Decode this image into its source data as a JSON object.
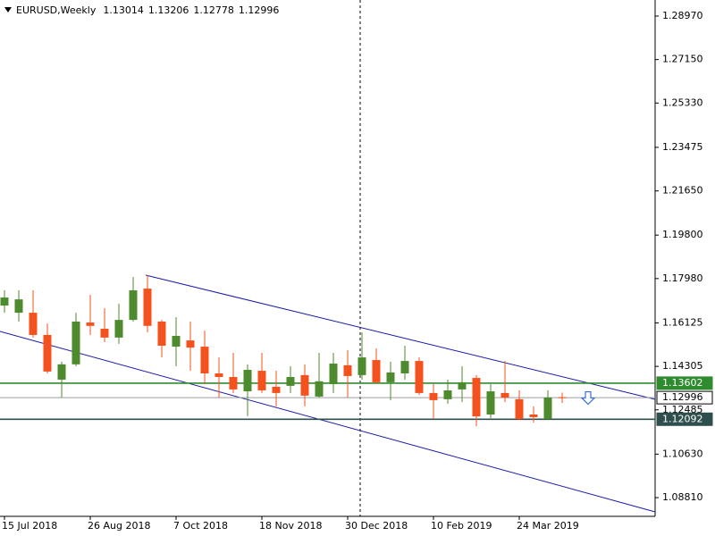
{
  "chart_data": {
    "type": "candlestick",
    "title": "EURUSD,Weekly",
    "header_ohlc": [
      1.13014,
      1.13206,
      1.12778,
      1.12996
    ],
    "categories": [
      "15 Jul 2018",
      null,
      null,
      null,
      null,
      null,
      "26 Aug 2018",
      null,
      null,
      null,
      null,
      null,
      "7 Oct 2018",
      null,
      null,
      null,
      null,
      null,
      "18 Nov 2018",
      null,
      null,
      null,
      null,
      null,
      "30 Dec 2018",
      null,
      null,
      null,
      null,
      null,
      "10 Feb 2019",
      null,
      null,
      null,
      null,
      null,
      "24 Mar 2019",
      null,
      null,
      null
    ],
    "open": [
      1.1685,
      1.1655,
      1.1655,
      1.1562,
      1.1375,
      1.1439,
      1.1614,
      1.1588,
      1.1551,
      1.1625,
      1.1756,
      1.1618,
      1.1513,
      1.1539,
      1.1513,
      1.1401,
      1.1386,
      1.1326,
      1.1412,
      1.1345,
      1.1349,
      1.1394,
      1.1304,
      1.1356,
      1.1435,
      1.1394,
      1.1457,
      1.1364,
      1.1401,
      1.1453,
      1.1319,
      1.1293,
      1.1334,
      1.1382,
      1.1229,
      1.1319,
      1.1293,
      1.1229,
      1.121,
      1.13014
    ],
    "high": [
      1.1749,
      1.1749,
      1.1749,
      1.161,
      1.145,
      1.1655,
      1.173,
      1.1674,
      1.1693,
      1.1805,
      1.1812,
      1.1625,
      1.1636,
      1.1618,
      1.158,
      1.1468,
      1.1487,
      1.1439,
      1.1487,
      1.1412,
      1.1431,
      1.1439,
      1.1487,
      1.1487,
      1.1498,
      1.1573,
      1.1506,
      1.145,
      1.1517,
      1.1468,
      1.1356,
      1.1375,
      1.1431,
      1.1394,
      1.1356,
      1.1453,
      1.133,
      1.1263,
      1.133,
      1.13206
    ],
    "low": [
      1.1655,
      1.1618,
      1.1551,
      1.1401,
      1.13,
      1.1431,
      1.1562,
      1.1532,
      1.1525,
      1.1618,
      1.1573,
      1.1468,
      1.1431,
      1.1412,
      1.1356,
      1.13,
      1.1319,
      1.1222,
      1.1319,
      1.1263,
      1.1319,
      1.1263,
      1.13,
      1.1319,
      1.13,
      1.1375,
      1.1356,
      1.1289,
      1.1375,
      1.1311,
      1.121,
      1.1274,
      1.1281,
      1.118,
      1.1214,
      1.1281,
      1.1206,
      1.1195,
      1.1206,
      1.12778
    ],
    "close": [
      1.1719,
      1.1711,
      1.1562,
      1.1409,
      1.1439,
      1.1618,
      1.16,
      1.1551,
      1.1625,
      1.1749,
      1.16,
      1.1517,
      1.1558,
      1.1509,
      1.1401,
      1.1386,
      1.1334,
      1.1416,
      1.133,
      1.1319,
      1.1386,
      1.1308,
      1.1368,
      1.1442,
      1.139,
      1.1468,
      1.1364,
      1.1405,
      1.1453,
      1.1319,
      1.1289,
      1.133,
      1.1364,
      1.1221,
      1.1326,
      1.13,
      1.121,
      1.1218,
      1.13,
      1.12996
    ],
    "up_color": "#4e8a2e",
    "down_color": "#f4511e",
    "xlim": [
      -0.3125,
      45.5
    ],
    "ylim": [
      1.08026,
      1.29643
    ],
    "yticks": [
      {
        "value": 1.2897,
        "label": "1.28970"
      },
      {
        "value": 1.2715,
        "label": "1.27150"
      },
      {
        "value": 1.2533,
        "label": "1.25330"
      },
      1.23475,
      {
        "value": 1.2165,
        "label": "1.21650"
      },
      {
        "value": 1.198,
        "label": "1.19800"
      },
      {
        "value": 1.1798,
        "label": "1.17980"
      },
      1.16125,
      1.14305,
      1.12485,
      {
        "value": 1.1063,
        "label": "1.10630"
      },
      {
        "value": 1.0881,
        "label": "1.08810"
      }
    ],
    "levels": [
      {
        "value": 1.13602,
        "color": "#2e8b2e"
      },
      {
        "value": 1.12996,
        "color": "#9e9e9e"
      },
      {
        "value": 1.12092,
        "color": "#2f4f4f"
      }
    ],
    "trendlines": [
      {
        "x": [
          9.875,
          45.5
        ],
        "y": [
          1.18124,
          1.12925
        ],
        "color": "#1a1aa6"
      },
      {
        "x": [
          -0.3125,
          45.5
        ],
        "y": [
          1.15768,
          1.08213
        ],
        "color": "#1a1aa6"
      }
    ],
    "cursor_x": 24.875,
    "signal": {
      "x": 40.8125,
      "y": 1.1324,
      "color": "#3a6fd8"
    }
  }
}
